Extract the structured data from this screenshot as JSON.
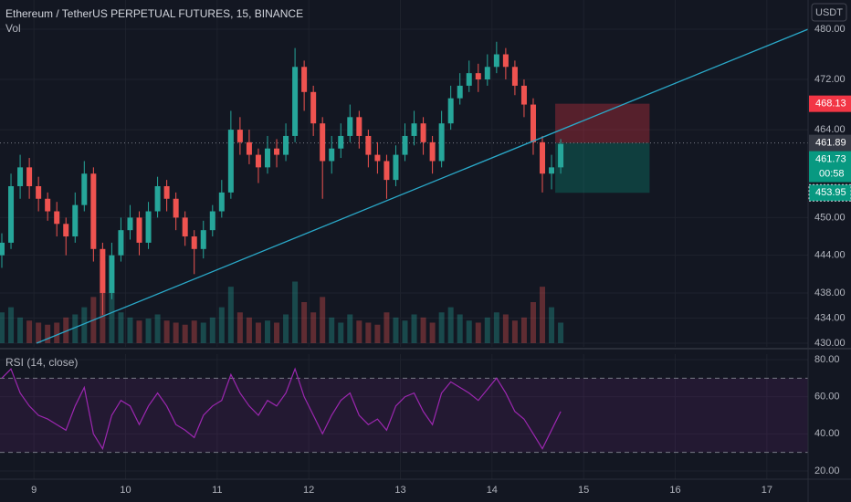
{
  "chart_data": {
    "type": "candlestick",
    "title": "Ethereum / TetherUS PERPETUAL FUTURES, 15, BINANCE",
    "volume_label": "Vol",
    "currency": "USDT",
    "countdown": "00:58",
    "up_color": "#26a69a",
    "down_color": "#ef5350",
    "x": [
      8.65,
      8.75,
      8.85,
      8.95,
      9.05,
      9.15,
      9.25,
      9.35,
      9.45,
      9.55,
      9.65,
      9.75,
      9.85,
      9.95,
      10.05,
      10.15,
      10.25,
      10.35,
      10.45,
      10.55,
      10.65,
      10.75,
      10.85,
      10.95,
      11.05,
      11.15,
      11.25,
      11.35,
      11.45,
      11.55,
      11.65,
      11.75,
      11.85,
      11.95,
      12.05,
      12.15,
      12.25,
      12.35,
      12.45,
      12.55,
      12.65,
      12.75,
      12.85,
      12.95,
      13.05,
      13.15,
      13.25,
      13.35,
      13.45,
      13.55,
      13.65,
      13.75,
      13.85,
      13.95,
      14.05,
      14.15,
      14.25,
      14.35,
      14.45,
      14.55,
      14.65,
      14.75
    ],
    "open": [
      444,
      446,
      455,
      458,
      455,
      453,
      451,
      449,
      447,
      452,
      457,
      445,
      438,
      444,
      448,
      450,
      446,
      451,
      455,
      453,
      450,
      447,
      445,
      448,
      451,
      454,
      464,
      462,
      460,
      458,
      461,
      460,
      463,
      474,
      470,
      465,
      459,
      461,
      463,
      466,
      463,
      460,
      459,
      456,
      460,
      463,
      465,
      462,
      459,
      465,
      469,
      471,
      473,
      472,
      474,
      476,
      474,
      471,
      468,
      462,
      457,
      458
    ],
    "high": [
      447.5,
      457,
      460,
      459.5,
      456.5,
      454,
      452.5,
      450,
      454,
      459,
      458,
      446,
      446,
      450,
      452,
      451,
      452.5,
      456.5,
      456,
      454,
      451,
      448,
      449.5,
      452,
      456,
      467,
      466,
      464,
      461,
      463,
      462.5,
      465,
      477,
      475,
      471,
      466,
      463,
      465,
      468,
      467,
      464,
      462,
      460,
      461.5,
      465,
      467,
      466,
      463,
      467,
      471,
      473,
      475,
      474.5,
      476,
      478,
      477,
      475,
      472,
      469,
      463,
      460,
      462.5
    ],
    "low": [
      442,
      445,
      453,
      453,
      451,
      449.5,
      447,
      444,
      446,
      451,
      443,
      434.5,
      437,
      443,
      446.5,
      444,
      445,
      450,
      451,
      448,
      445.5,
      441,
      443.5,
      447,
      450,
      453,
      460,
      458.5,
      455.5,
      457,
      458,
      459,
      462,
      467,
      463,
      453,
      457,
      459.5,
      462,
      461,
      458,
      457,
      453,
      455,
      459,
      461.5,
      460,
      457,
      458,
      464,
      468,
      470,
      470,
      471,
      473,
      472,
      469.5,
      466,
      460,
      454,
      454.5,
      457
    ],
    "close": [
      446,
      455,
      458,
      455,
      453,
      451,
      449,
      447,
      452,
      457,
      445,
      438,
      444,
      448,
      450,
      446,
      451,
      455,
      453,
      450,
      447,
      445,
      448,
      451,
      454,
      464,
      462,
      460,
      458,
      461,
      460,
      463,
      474,
      470,
      465,
      459,
      461,
      463,
      466,
      463,
      460,
      459,
      456,
      460,
      463,
      465,
      462,
      459,
      465,
      469,
      471,
      473,
      472,
      474,
      476,
      474,
      471,
      468,
      462,
      457,
      458,
      461.73
    ],
    "volume": [
      30,
      35,
      25,
      22,
      20,
      18,
      20,
      25,
      28,
      35,
      45,
      80,
      50,
      30,
      25,
      22,
      24,
      28,
      22,
      20,
      18,
      22,
      20,
      25,
      35,
      55,
      30,
      25,
      20,
      22,
      20,
      28,
      60,
      40,
      30,
      45,
      25,
      20,
      28,
      22,
      20,
      18,
      30,
      25,
      22,
      28,
      25,
      20,
      30,
      35,
      28,
      22,
      20,
      25,
      30,
      28,
      22,
      25,
      40,
      55,
      35,
      20
    ],
    "xlim": [
      8.63,
      17.45
    ],
    "xticks": [
      9,
      10,
      11,
      12,
      13,
      14,
      15,
      16,
      17
    ],
    "ylim": [
      429.42,
      484.65
    ],
    "yticks": [
      {
        "value": 430,
        "label": "430.00"
      },
      {
        "value": 434,
        "label": "434.00"
      },
      {
        "value": 438,
        "label": "438.00"
      },
      {
        "value": 444,
        "label": "444.00"
      },
      {
        "value": 450,
        "label": "450.00"
      },
      {
        "value": 464,
        "label": "464.00"
      },
      {
        "value": 472,
        "label": "472.00"
      },
      {
        "value": 480,
        "label": "480.00"
      }
    ],
    "grid": true,
    "trendline": {
      "x": [
        9.03,
        17.45
      ],
      "y": [
        430,
        480
      ],
      "color": "#2aa9c9"
    },
    "position": {
      "x": [
        14.69,
        15.72
      ],
      "target": 468.13,
      "entry": 461.89,
      "stop": 453.95,
      "target_color": "#f23645",
      "entry_color": "#363a45",
      "stop_color": "#089981"
    },
    "last_price": 461.73,
    "last_price_color": "#089981",
    "rsi": {
      "label": "RSI (14, close)",
      "color": "#9c27b0",
      "values": [
        70,
        75,
        62,
        55,
        50,
        48,
        45,
        42,
        55,
        65,
        40,
        32,
        50,
        58,
        55,
        45,
        55,
        62,
        55,
        45,
        42,
        38,
        50,
        55,
        58,
        72,
        62,
        55,
        50,
        58,
        55,
        62,
        75,
        60,
        50,
        40,
        50,
        58,
        62,
        50,
        45,
        48,
        42,
        55,
        60,
        62,
        52,
        45,
        62,
        68,
        65,
        62,
        58,
        64,
        70,
        62,
        52,
        48,
        40,
        32,
        42,
        52
      ],
      "ylim": [
        15.57,
        82.95
      ],
      "yticks": [
        {
          "value": 20,
          "label": "20.00"
        },
        {
          "value": 40,
          "label": "40.00"
        },
        {
          "value": 60,
          "label": "60.00"
        },
        {
          "value": 80,
          "label": "80.00"
        }
      ],
      "bands": [
        30,
        70
      ]
    }
  }
}
